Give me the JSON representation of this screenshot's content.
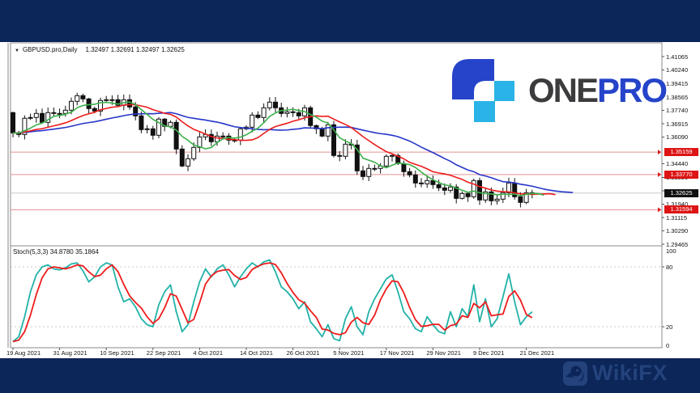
{
  "header": {
    "arrow": "▼",
    "symbol": "GBPUSD.pro,Daily",
    "ohlc": "1.32497 1.32691 1.32497 1.32625"
  },
  "logo": {
    "one": "ONE",
    "pro": "PRO"
  },
  "watermark": {
    "text": "WikiFX"
  },
  "chart_data": {
    "type": "candlestick",
    "title": "GBPUSD.pro,Daily",
    "ohlc_display": {
      "open": "1.32497",
      "high": "1.32691",
      "low": "1.32497",
      "close": "1.32625"
    },
    "x_labels": [
      "19 Aug 2021",
      "31 Aug 2021",
      "10 Sep 2021",
      "22 Sep 2021",
      "4 Oct 2021",
      "14 Oct 2021",
      "26 Oct 2021",
      "5 Nov 2021",
      "17 Nov 2021",
      "29 Nov 2021",
      "9 Dec 2021",
      "21 Dec 2021"
    ],
    "x_label_indices": [
      0,
      8,
      16,
      24,
      32,
      40,
      48,
      56,
      64,
      72,
      80,
      88
    ],
    "y_ticks": [
      "1.41065",
      "1.40240",
      "1.39415",
      "1.38565",
      "1.37740",
      "1.36915",
      "1.36090",
      "1.34440",
      "1.33590",
      "1.32765",
      "1.31940",
      "1.31115",
      "1.30290",
      "1.29465"
    ],
    "red_levels": [
      "1.35159",
      "1.33770",
      "1.31594"
    ],
    "current_price": "1.32625",
    "first_open": 1.376,
    "closes": [
      1.3635,
      1.3625,
      1.3725,
      1.373,
      1.3755,
      1.37,
      1.376,
      1.3755,
      1.3755,
      1.3775,
      1.383,
      1.3865,
      1.3845,
      1.3785,
      1.377,
      1.3835,
      1.384,
      1.384,
      1.3805,
      1.384,
      1.3795,
      1.374,
      1.3655,
      1.366,
      1.362,
      1.372,
      1.3675,
      1.37,
      1.3535,
      1.343,
      1.3475,
      1.3545,
      1.361,
      1.3625,
      1.358,
      1.3615,
      1.3615,
      1.359,
      1.359,
      1.366,
      1.367,
      1.3745,
      1.373,
      1.379,
      1.3825,
      1.379,
      1.3755,
      1.3765,
      1.376,
      1.374,
      1.379,
      1.368,
      1.366,
      1.3615,
      1.3685,
      1.3495,
      1.349,
      1.3565,
      1.356,
      1.34,
      1.3365,
      1.3415,
      1.3415,
      1.343,
      1.349,
      1.3495,
      1.3445,
      1.3395,
      1.3375,
      1.3325,
      1.332,
      1.334,
      1.3315,
      1.3295,
      1.328,
      1.33,
      1.323,
      1.326,
      1.324,
      1.334,
      1.322,
      1.327,
      1.3215,
      1.3225,
      1.3265,
      1.3325,
      1.324,
      1.3205,
      1.3265,
      1.32625
    ],
    "ma": {
      "fast": {
        "period": 6,
        "ext": 2,
        "color": "#3db04b"
      },
      "mid": {
        "period": 14,
        "ext": 4,
        "color": "#ee1c1c"
      },
      "slow": {
        "period": 26,
        "ext": 7,
        "color": "#2736c9"
      }
    },
    "stoch": {
      "label": "Stoch(5,3,3) 34.8780 35.1864",
      "levels": [
        80,
        20
      ],
      "scale_labels": [
        "100",
        "80",
        "20",
        "0"
      ],
      "k_color": "#22b2a8",
      "d_color": "#ee1c1c",
      "k": [
        5,
        10,
        30,
        55,
        72,
        80,
        82,
        78,
        77,
        79,
        83,
        84,
        76,
        65,
        70,
        80,
        84,
        82,
        60,
        45,
        48,
        40,
        28,
        22,
        20,
        42,
        55,
        62,
        35,
        15,
        22,
        45,
        65,
        78,
        70,
        78,
        82,
        72,
        60,
        70,
        78,
        84,
        80,
        85,
        87,
        75,
        60,
        55,
        48,
        38,
        45,
        25,
        18,
        10,
        22,
        8,
        6,
        28,
        40,
        20,
        12,
        35,
        48,
        58,
        68,
        72,
        55,
        35,
        28,
        18,
        15,
        30,
        22,
        15,
        13,
        35,
        20,
        38,
        30,
        62,
        25,
        48,
        20,
        28,
        50,
        73,
        45,
        22,
        30,
        35
      ]
    },
    "colors": {
      "level_red": "#e59090",
      "badge_red": "#dd1515",
      "badge_black": "#111111",
      "current_line": "#c9c9c9",
      "border": "#8a8a8a",
      "candle": "#111111",
      "grid_dash": "#c8c8c8"
    }
  }
}
